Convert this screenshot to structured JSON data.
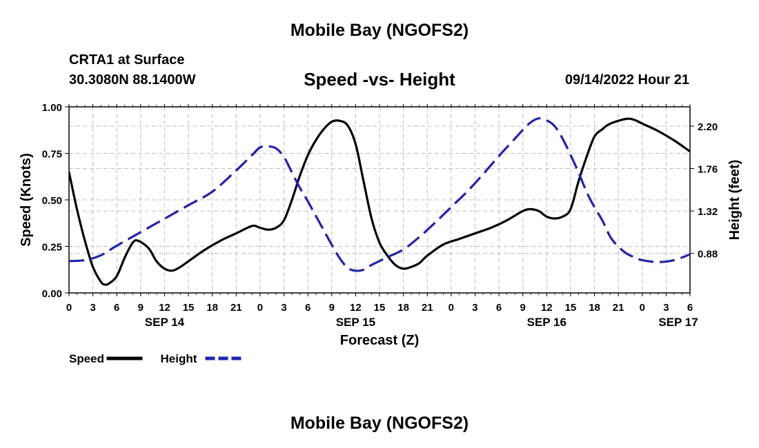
{
  "header": {
    "title": "Mobile Bay (NGOFS2)",
    "station": "CRTA1 at Surface",
    "coords": "30.3080N  88.1400W",
    "timestamp": "09/14/2022 Hour 21"
  },
  "footer": {
    "title": "Mobile Bay (NGOFS2)"
  },
  "chart_data": {
    "type": "line",
    "title": "Speed -vs- Height",
    "xlabel": "Forecast (Z)",
    "ylabel": "Speed (Knots)",
    "y2label": "Height (feet)",
    "x_unit": "hours since 2022-09-14 00Z",
    "xlim": [
      0,
      78
    ],
    "ylim": [
      0,
      1.0
    ],
    "y2lim": [
      0.47,
      2.4
    ],
    "grid": true,
    "x_ticks": [
      {
        "x": 0,
        "label": "0"
      },
      {
        "x": 3,
        "label": "3"
      },
      {
        "x": 6,
        "label": "6"
      },
      {
        "x": 9,
        "label": "9"
      },
      {
        "x": 12,
        "label": "12"
      },
      {
        "x": 15,
        "label": "15"
      },
      {
        "x": 18,
        "label": "18"
      },
      {
        "x": 21,
        "label": "21"
      },
      {
        "x": 24,
        "label": "0"
      },
      {
        "x": 27,
        "label": "3"
      },
      {
        "x": 30,
        "label": "6"
      },
      {
        "x": 33,
        "label": "9"
      },
      {
        "x": 36,
        "label": "12"
      },
      {
        "x": 39,
        "label": "15"
      },
      {
        "x": 42,
        "label": "18"
      },
      {
        "x": 45,
        "label": "21"
      },
      {
        "x": 48,
        "label": "0"
      },
      {
        "x": 51,
        "label": "3"
      },
      {
        "x": 54,
        "label": "6"
      },
      {
        "x": 57,
        "label": "9"
      },
      {
        "x": 60,
        "label": "12"
      },
      {
        "x": 63,
        "label": "15"
      },
      {
        "x": 66,
        "label": "18"
      },
      {
        "x": 69,
        "label": "21"
      },
      {
        "x": 72,
        "label": "0"
      },
      {
        "x": 75,
        "label": "3"
      },
      {
        "x": 78,
        "label": "6"
      }
    ],
    "date_labels": [
      {
        "x": 12,
        "label": "SEP 14"
      },
      {
        "x": 36,
        "label": "SEP 15"
      },
      {
        "x": 60,
        "label": "SEP 16"
      },
      {
        "x": 78,
        "label": "SEP 17"
      }
    ],
    "y_ticks": [
      {
        "v": 0.0,
        "label": "0.00"
      },
      {
        "v": 0.25,
        "label": "0.25"
      },
      {
        "v": 0.5,
        "label": "0.50"
      },
      {
        "v": 0.75,
        "label": "0.75"
      },
      {
        "v": 1.0,
        "label": "1.00"
      }
    ],
    "y2_ticks": [
      {
        "v": 0.88,
        "label": "0.88"
      },
      {
        "v": 1.32,
        "label": "1.32"
      },
      {
        "v": 1.76,
        "label": "1.76"
      },
      {
        "v": 2.2,
        "label": "2.20"
      }
    ],
    "series": [
      {
        "name": "Speed",
        "axis": "left",
        "color": "#000000",
        "dash": "solid",
        "points": [
          [
            0,
            0.65
          ],
          [
            1,
            0.45
          ],
          [
            2,
            0.28
          ],
          [
            3,
            0.14
          ],
          [
            4,
            0.06
          ],
          [
            4.5,
            0.045
          ],
          [
            5,
            0.05
          ],
          [
            6,
            0.09
          ],
          [
            7,
            0.19
          ],
          [
            8,
            0.27
          ],
          [
            8.7,
            0.28
          ],
          [
            10,
            0.24
          ],
          [
            11,
            0.17
          ],
          [
            12,
            0.13
          ],
          [
            13,
            0.12
          ],
          [
            14,
            0.14
          ],
          [
            15,
            0.17
          ],
          [
            17,
            0.23
          ],
          [
            19,
            0.28
          ],
          [
            21,
            0.32
          ],
          [
            23,
            0.36
          ],
          [
            24,
            0.35
          ],
          [
            25,
            0.34
          ],
          [
            26,
            0.35
          ],
          [
            27,
            0.39
          ],
          [
            28,
            0.5
          ],
          [
            29,
            0.63
          ],
          [
            30,
            0.74
          ],
          [
            31,
            0.82
          ],
          [
            32,
            0.88
          ],
          [
            33,
            0.92
          ],
          [
            34,
            0.925
          ],
          [
            35,
            0.9
          ],
          [
            36,
            0.8
          ],
          [
            37,
            0.6
          ],
          [
            38,
            0.4
          ],
          [
            39,
            0.27
          ],
          [
            40,
            0.2
          ],
          [
            41,
            0.15
          ],
          [
            42,
            0.13
          ],
          [
            43,
            0.14
          ],
          [
            44,
            0.16
          ],
          [
            45,
            0.2
          ],
          [
            47,
            0.26
          ],
          [
            49,
            0.29
          ],
          [
            51,
            0.32
          ],
          [
            53,
            0.35
          ],
          [
            55,
            0.39
          ],
          [
            57,
            0.44
          ],
          [
            58,
            0.45
          ],
          [
            59,
            0.44
          ],
          [
            60,
            0.41
          ],
          [
            61,
            0.4
          ],
          [
            62,
            0.41
          ],
          [
            63,
            0.45
          ],
          [
            64,
            0.6
          ],
          [
            65,
            0.73
          ],
          [
            66,
            0.84
          ],
          [
            67,
            0.88
          ],
          [
            68,
            0.91
          ],
          [
            70,
            0.935
          ],
          [
            71,
            0.93
          ],
          [
            72,
            0.91
          ],
          [
            74,
            0.87
          ],
          [
            76,
            0.82
          ],
          [
            78,
            0.76
          ],
          [
            78,
            0.76
          ],
          [
            78.0,
            0.76
          ]
        ]
      },
      {
        "name": "Height",
        "axis": "right",
        "color": "#1e1ec8",
        "dash": "dashed",
        "points": [
          [
            0,
            0.8
          ],
          [
            2,
            0.81
          ],
          [
            4,
            0.86
          ],
          [
            6,
            0.96
          ],
          [
            9,
            1.1
          ],
          [
            12,
            1.24
          ],
          [
            15,
            1.38
          ],
          [
            18,
            1.52
          ],
          [
            21,
            1.74
          ],
          [
            23,
            1.9
          ],
          [
            24,
            1.98
          ],
          [
            25,
            1.99
          ],
          [
            26,
            1.97
          ],
          [
            27,
            1.88
          ],
          [
            28,
            1.72
          ],
          [
            29,
            1.56
          ],
          [
            30,
            1.42
          ],
          [
            31,
            1.27
          ],
          [
            32,
            1.12
          ],
          [
            33,
            0.97
          ],
          [
            34,
            0.83
          ],
          [
            35,
            0.73
          ],
          [
            36,
            0.7
          ],
          [
            37,
            0.71
          ],
          [
            38,
            0.76
          ],
          [
            40,
            0.84
          ],
          [
            42,
            0.92
          ],
          [
            44,
            1.05
          ],
          [
            46,
            1.2
          ],
          [
            48,
            1.36
          ],
          [
            50,
            1.52
          ],
          [
            52,
            1.7
          ],
          [
            54,
            1.89
          ],
          [
            56,
            2.07
          ],
          [
            57,
            2.16
          ],
          [
            58,
            2.24
          ],
          [
            59,
            2.28
          ],
          [
            60,
            2.26
          ],
          [
            61,
            2.2
          ],
          [
            62,
            2.07
          ],
          [
            63,
            1.9
          ],
          [
            64,
            1.72
          ],
          [
            65,
            1.52
          ],
          [
            66,
            1.36
          ],
          [
            67,
            1.22
          ],
          [
            68,
            1.05
          ],
          [
            69,
            0.95
          ],
          [
            70,
            0.88
          ],
          [
            71,
            0.84
          ],
          [
            72,
            0.81
          ],
          [
            74,
            0.79
          ],
          [
            76,
            0.81
          ],
          [
            78,
            0.87
          ]
        ]
      }
    ],
    "legend": [
      {
        "label": "Speed",
        "color": "#000000",
        "dash": "solid"
      },
      {
        "label": "Height",
        "color": "#1e1ec8",
        "dash": "dashed"
      }
    ]
  }
}
